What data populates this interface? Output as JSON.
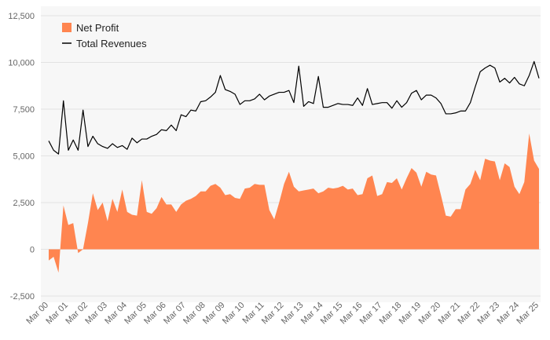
{
  "chart_data": {
    "type": "area",
    "title": "",
    "xlabel": "",
    "ylabel": "",
    "ylim": [
      -2500,
      12500
    ],
    "y_ticks": [
      "12,500",
      "10,000",
      "7,500",
      "5,000",
      "2,500",
      "0",
      "-2,500"
    ],
    "y_tick_values": [
      12500,
      10000,
      7500,
      5000,
      2500,
      0,
      -2500
    ],
    "x_tick_labels": [
      "Mar 00",
      "Mar 01",
      "Mar 02",
      "Mar 03",
      "Mar 04",
      "Mar 05",
      "Mar 06",
      "Mar 07",
      "Mar 08",
      "Mar 09",
      "Mar 10",
      "Mar 11",
      "Mar 12",
      "Mar 13",
      "Mar 14",
      "Mar 15",
      "Mar 16",
      "Mar 17",
      "Mar 18",
      "Mar 19",
      "Mar 20",
      "Mar 21",
      "Mar 22",
      "Mar 23",
      "Mar 24",
      "Mar 25"
    ],
    "grid": "horizontal",
    "legend_position": "top-left",
    "background_color": "#f7f7f7",
    "series": [
      {
        "name": "Net Profit",
        "type": "area",
        "color": "#ff8550",
        "values": [
          -600,
          -400,
          -1250,
          2350,
          1300,
          1400,
          -200,
          0,
          1400,
          3000,
          2100,
          2500,
          1500,
          2700,
          2000,
          3200,
          2000,
          1850,
          1800,
          3700,
          2000,
          1900,
          2200,
          2800,
          2400,
          2400,
          2000,
          2400,
          2600,
          2700,
          2850,
          3100,
          3100,
          3400,
          3500,
          3300,
          2900,
          2950,
          2750,
          2700,
          3250,
          3300,
          3500,
          3450,
          3450,
          2100,
          1600,
          2500,
          3500,
          4150,
          3350,
          3100,
          3150,
          3200,
          3250,
          3000,
          3100,
          3300,
          3250,
          3300,
          3400,
          3200,
          3250,
          2900,
          2950,
          3800,
          3950,
          2850,
          2950,
          3600,
          3550,
          3800,
          3200,
          3800,
          4350,
          4100,
          3350,
          4150,
          4000,
          3950,
          2900,
          1800,
          1750,
          2150,
          2150,
          3200,
          3500,
          4250,
          3700,
          4850,
          4750,
          4700,
          3700,
          4600,
          4400,
          3350,
          2950,
          3600,
          6200,
          4750,
          4300
        ]
      },
      {
        "name": "Total Revenues",
        "type": "line",
        "color": "#000000",
        "values": [
          5800,
          5300,
          5100,
          7950,
          5300,
          5850,
          5300,
          7450,
          5500,
          6050,
          5650,
          5500,
          5400,
          5650,
          5450,
          5550,
          5350,
          5950,
          5700,
          5900,
          5900,
          6050,
          6150,
          6400,
          6350,
          6650,
          6350,
          7200,
          7100,
          7450,
          7400,
          7900,
          7950,
          8150,
          8400,
          9300,
          8550,
          8450,
          8300,
          7750,
          7950,
          7950,
          8050,
          8300,
          8000,
          8200,
          8300,
          8400,
          8400,
          8500,
          7850,
          9800,
          7650,
          7900,
          7800,
          9250,
          7600,
          7600,
          7700,
          7800,
          7750,
          7750,
          7700,
          8100,
          7700,
          8600,
          7750,
          7800,
          7850,
          7850,
          7550,
          7950,
          7600,
          7850,
          8350,
          8500,
          8000,
          8250,
          8250,
          8100,
          7800,
          7250,
          7250,
          7300,
          7400,
          7400,
          7850,
          8700,
          9500,
          9700,
          9850,
          9700,
          8950,
          9150,
          8900,
          9200,
          8850,
          8750,
          9300,
          10050,
          9150
        ]
      }
    ]
  }
}
